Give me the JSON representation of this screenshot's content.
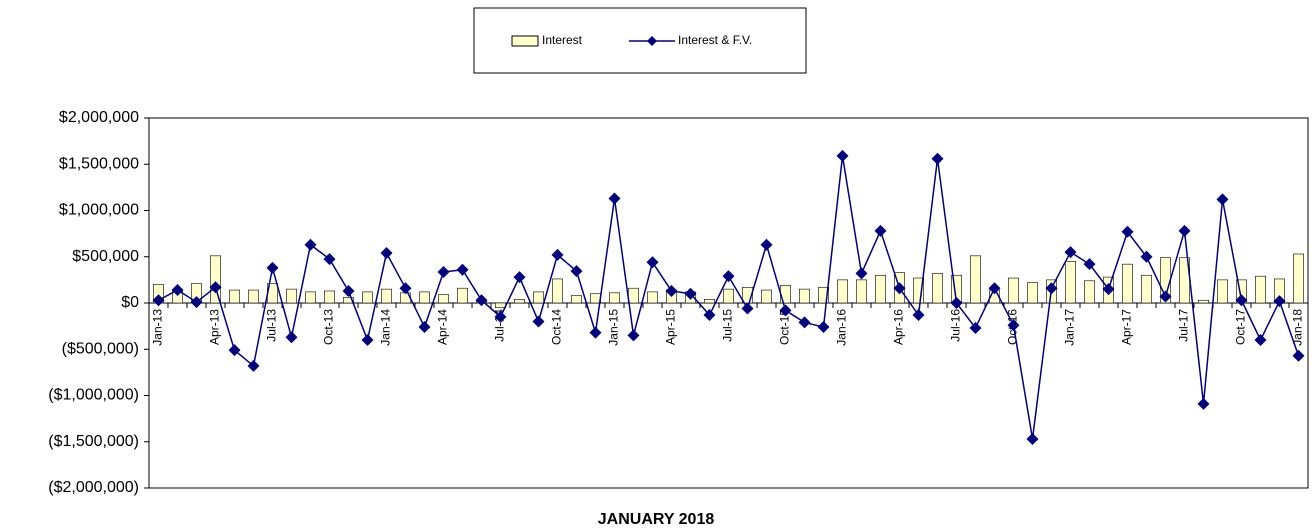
{
  "chart_data": {
    "type": "bar-line",
    "title": "JANUARY 2018",
    "categories": [
      "Jan-13",
      null,
      null,
      "Apr-13",
      null,
      null,
      "Jul-13",
      null,
      null,
      "Oct-13",
      null,
      null,
      "Jan-14",
      null,
      null,
      "Apr-14",
      null,
      null,
      "Jul-14",
      null,
      null,
      "Oct-14",
      null,
      null,
      "Jan-15",
      null,
      null,
      "Apr-15",
      null,
      null,
      "Jul-15",
      null,
      null,
      "Oct-15",
      null,
      null,
      "Jan-16",
      null,
      null,
      "Apr-16",
      null,
      null,
      "Jul-16",
      null,
      null,
      "Oct-16",
      null,
      null,
      "Jan-17",
      null,
      null,
      "Apr-17",
      null,
      null,
      "Jul-17",
      null,
      null,
      "Oct-17",
      null,
      null,
      "Jan-18"
    ],
    "series": [
      {
        "name": "Interest",
        "type": "bar",
        "color": "#ffffcc",
        "values": [
          200000,
          140000,
          210000,
          510000,
          140000,
          140000,
          210000,
          150000,
          120000,
          130000,
          60000,
          120000,
          150000,
          110000,
          120000,
          90000,
          160000,
          30000,
          -50000,
          40000,
          120000,
          260000,
          80000,
          100000,
          110000,
          160000,
          120000,
          140000,
          120000,
          40000,
          150000,
          170000,
          140000,
          190000,
          150000,
          170000,
          250000,
          250000,
          300000,
          330000,
          270000,
          320000,
          300000,
          510000,
          140000,
          270000,
          220000,
          250000,
          450000,
          240000,
          280000,
          420000,
          300000,
          490000,
          490000,
          30000,
          250000,
          250000,
          290000,
          260000,
          530000
        ]
      },
      {
        "name": "Interest & F.V.",
        "type": "line",
        "color": "#000080",
        "values": [
          30000,
          140000,
          10000,
          170000,
          -510000,
          -680000,
          380000,
          -370000,
          630000,
          475000,
          130000,
          -400000,
          540000,
          160000,
          -260000,
          335000,
          360000,
          30000,
          -150000,
          280000,
          -200000,
          520000,
          345000,
          -320000,
          1130000,
          -350000,
          440000,
          130000,
          100000,
          -130000,
          290000,
          -60000,
          630000,
          -80000,
          -210000,
          -260000,
          1590000,
          320000,
          780000,
          160000,
          -130000,
          1560000,
          0,
          -270000,
          160000,
          -240000,
          -1470000,
          160000,
          550000,
          420000,
          150000,
          770000,
          500000,
          70000,
          780000,
          -1090000,
          1120000,
          30000,
          -400000,
          20000,
          -570000
        ]
      }
    ],
    "ylim": [
      -2000000,
      2000000
    ],
    "yticks": [
      {
        "value": -2000000,
        "label": "($2,000,000)"
      },
      {
        "value": -1500000,
        "label": "($1,500,000)"
      },
      {
        "value": -1000000,
        "label": "($1,000,000)"
      },
      {
        "value": -500000,
        "label": "($500,000)"
      },
      {
        "value": 0,
        "label": "$0"
      },
      {
        "value": 500000,
        "label": "$500,000"
      },
      {
        "value": 1000000,
        "label": "$1,000,000"
      },
      {
        "value": 1500000,
        "label": "$1,500,000"
      },
      {
        "value": 2000000,
        "label": "$2,000,000"
      }
    ],
    "legend": "top"
  }
}
